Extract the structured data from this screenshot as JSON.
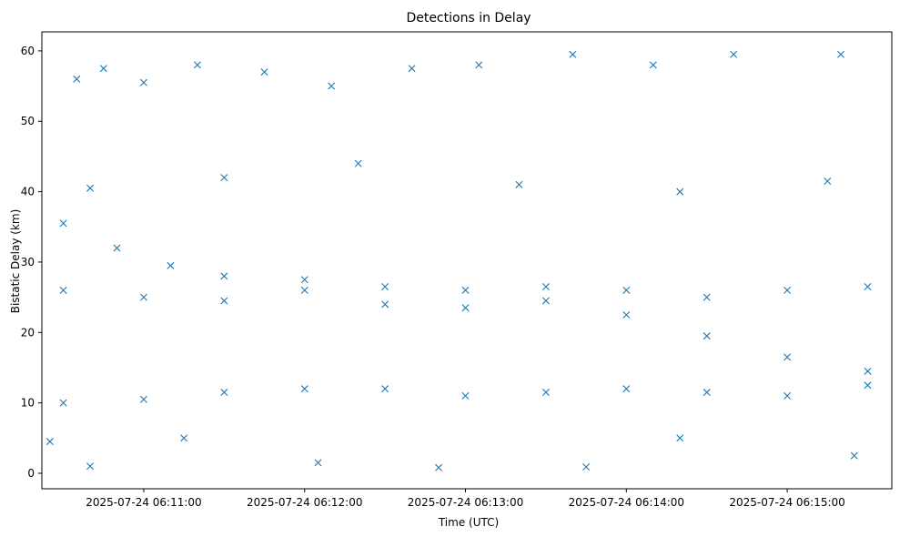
{
  "chart_data": {
    "type": "scatter",
    "title": "Detections in Delay",
    "xlabel": "Time (UTC)",
    "ylabel": "Bistatic Delay (km)",
    "marker": "x",
    "color": "#1f77b4",
    "grid": false,
    "x_range": [
      "2025-07-24 06:10:22",
      "2025-07-24 06:15:39"
    ],
    "ylim": [
      -2.2,
      62.7
    ],
    "x_ticks": [
      "2025-07-24 06:11:00",
      "2025-07-24 06:12:00",
      "2025-07-24 06:13:00",
      "2025-07-24 06:14:00",
      "2025-07-24 06:15:00"
    ],
    "y_ticks": [
      0,
      10,
      20,
      30,
      40,
      50,
      60
    ],
    "track_samples": [
      {
        "x": "2025-07-24 06:10:30",
        "y": 35.5
      },
      {
        "x": "2025-07-24 06:10:50",
        "y": 32.0
      },
      {
        "x": "2025-07-24 06:11:10",
        "y": 29.5
      },
      {
        "x": "2025-07-24 06:11:30",
        "y": 28.0
      },
      {
        "x": "2025-07-24 06:12:00",
        "y": 26.0
      },
      {
        "x": "2025-07-24 06:12:30",
        "y": 24.0
      },
      {
        "x": "2025-07-24 06:13:00",
        "y": 23.5
      },
      {
        "x": "2025-07-24 06:13:30",
        "y": 24.5
      },
      {
        "x": "2025-07-24 06:14:00",
        "y": 22.5
      },
      {
        "x": "2025-07-24 06:14:30",
        "y": 19.5
      },
      {
        "x": "2025-07-24 06:15:00",
        "y": 16.5
      },
      {
        "x": "2025-07-24 06:15:30",
        "y": 14.5
      },
      {
        "x": "2025-07-24 06:10:30",
        "y": 26.0
      },
      {
        "x": "2025-07-24 06:11:00",
        "y": 25.0
      },
      {
        "x": "2025-07-24 06:11:30",
        "y": 24.5
      },
      {
        "x": "2025-07-24 06:12:00",
        "y": 27.5
      },
      {
        "x": "2025-07-24 06:12:30",
        "y": 26.5
      },
      {
        "x": "2025-07-24 06:13:00",
        "y": 26.0
      },
      {
        "x": "2025-07-24 06:13:30",
        "y": 26.5
      },
      {
        "x": "2025-07-24 06:14:00",
        "y": 26.0
      },
      {
        "x": "2025-07-24 06:14:30",
        "y": 25.0
      },
      {
        "x": "2025-07-24 06:15:00",
        "y": 26.0
      },
      {
        "x": "2025-07-24 06:15:30",
        "y": 26.5
      },
      {
        "x": "2025-07-24 06:10:30",
        "y": 10.0
      },
      {
        "x": "2025-07-24 06:11:00",
        "y": 10.5
      },
      {
        "x": "2025-07-24 06:11:30",
        "y": 11.5
      },
      {
        "x": "2025-07-24 06:12:00",
        "y": 12.0
      },
      {
        "x": "2025-07-24 06:12:30",
        "y": 12.0
      },
      {
        "x": "2025-07-24 06:13:00",
        "y": 11.0
      },
      {
        "x": "2025-07-24 06:13:30",
        "y": 11.5
      },
      {
        "x": "2025-07-24 06:14:00",
        "y": 12.0
      },
      {
        "x": "2025-07-24 06:14:30",
        "y": 11.5
      },
      {
        "x": "2025-07-24 06:15:00",
        "y": 11.0
      },
      {
        "x": "2025-07-24 06:15:30",
        "y": 12.5
      }
    ],
    "scattered_samples": [
      {
        "x": "2025-07-24 06:10:35",
        "y": 56.0
      },
      {
        "x": "2025-07-24 06:10:45",
        "y": 57.5
      },
      {
        "x": "2025-07-24 06:11:00",
        "y": 55.5
      },
      {
        "x": "2025-07-24 06:11:20",
        "y": 58.0
      },
      {
        "x": "2025-07-24 06:11:45",
        "y": 57.0
      },
      {
        "x": "2025-07-24 06:12:10",
        "y": 55.0
      },
      {
        "x": "2025-07-24 06:12:40",
        "y": 57.5
      },
      {
        "x": "2025-07-24 06:13:05",
        "y": 58.0
      },
      {
        "x": "2025-07-24 06:13:40",
        "y": 59.5
      },
      {
        "x": "2025-07-24 06:14:10",
        "y": 58.0
      },
      {
        "x": "2025-07-24 06:14:40",
        "y": 59.5
      },
      {
        "x": "2025-07-24 06:15:20",
        "y": 59.5
      },
      {
        "x": "2025-07-24 06:10:40",
        "y": 40.5
      },
      {
        "x": "2025-07-24 06:11:30",
        "y": 42.0
      },
      {
        "x": "2025-07-24 06:12:20",
        "y": 44.0
      },
      {
        "x": "2025-07-24 06:13:20",
        "y": 41.0
      },
      {
        "x": "2025-07-24 06:14:20",
        "y": 40.0
      },
      {
        "x": "2025-07-24 06:15:15",
        "y": 41.5
      },
      {
        "x": "2025-07-24 06:10:25",
        "y": 4.5
      },
      {
        "x": "2025-07-24 06:10:40",
        "y": 1.0
      },
      {
        "x": "2025-07-24 06:11:15",
        "y": 5.0
      },
      {
        "x": "2025-07-24 06:12:05",
        "y": 1.5
      },
      {
        "x": "2025-07-24 06:12:50",
        "y": 0.8
      },
      {
        "x": "2025-07-24 06:13:45",
        "y": 0.9
      },
      {
        "x": "2025-07-24 06:14:20",
        "y": 5.0
      },
      {
        "x": "2025-07-24 06:15:25",
        "y": 2.5
      }
    ]
  }
}
